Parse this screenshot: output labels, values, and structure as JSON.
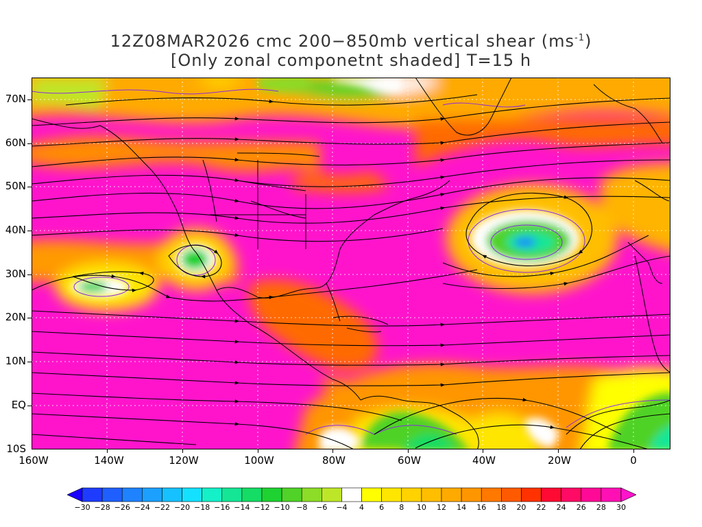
{
  "title": {
    "line1_prefix": "12Z08MAR2026 cmc 200−850mb vertical shear (ms",
    "line1_sup": "-1",
    "line1_suffix": ")",
    "line2": "[Only zonal componetnt shaded] T=15 h"
  },
  "axes": {
    "lat_labels": [
      "70N",
      "60N",
      "50N",
      "40N",
      "30N",
      "20N",
      "10N",
      "EQ",
      "10S"
    ],
    "lon_labels": [
      "160W",
      "140W",
      "120W",
      "100W",
      "80W",
      "60W",
      "40W",
      "20W",
      "0"
    ],
    "lon_range": [
      -160,
      10
    ],
    "lat_range": [
      -10,
      75
    ],
    "grid": "dotted"
  },
  "colorbar": {
    "labels": [
      "-30",
      "-28",
      "-26",
      "-24",
      "-22",
      "-20",
      "-18",
      "-16",
      "-14",
      "-12",
      "-10",
      "-8",
      "-6",
      "-4",
      "4",
      "6",
      "8",
      "10",
      "12",
      "14",
      "16",
      "18",
      "20",
      "22",
      "24",
      "26",
      "28",
      "30"
    ],
    "colors": [
      "#1a00ff",
      "#1e3cff",
      "#1f5fff",
      "#1f82ff",
      "#1ca0ff",
      "#16c1ff",
      "#13e1ff",
      "#14f0c8",
      "#14e696",
      "#14dc64",
      "#1ed232",
      "#50d228",
      "#8cdc28",
      "#bee628",
      "#ffffff",
      "#ffff00",
      "#ffe600",
      "#ffd200",
      "#ffbe00",
      "#ffaa00",
      "#ff9600",
      "#ff7800",
      "#ff5a00",
      "#ff3200",
      "#ff0a32",
      "#ff0a64",
      "#ff0a96",
      "#ff10b4",
      "#ff14cc"
    ]
  },
  "field": {
    "variable": "200-850mb vertical shear, zonal component shaded",
    "units": "m s-1",
    "features": [
      {
        "type": "negative_core",
        "lon": -28,
        "lat": 37,
        "min": -26
      },
      {
        "type": "negative_core",
        "lon": -145,
        "lat": 27,
        "min": -12
      },
      {
        "type": "negative_core",
        "lon": -117,
        "lat": 32,
        "min": -10
      },
      {
        "type": "negative_region",
        "lon": -70,
        "lat": -5
      },
      {
        "type": "negative_region",
        "lon": 0,
        "lat": -3
      },
      {
        "type": "jet_max",
        "lat": 50,
        "min": 30
      },
      {
        "type": "jet_max",
        "lat": 40,
        "min": 30
      },
      {
        "type": "tropical_westerlies",
        "lat": 10,
        "min": 30
      }
    ]
  }
}
